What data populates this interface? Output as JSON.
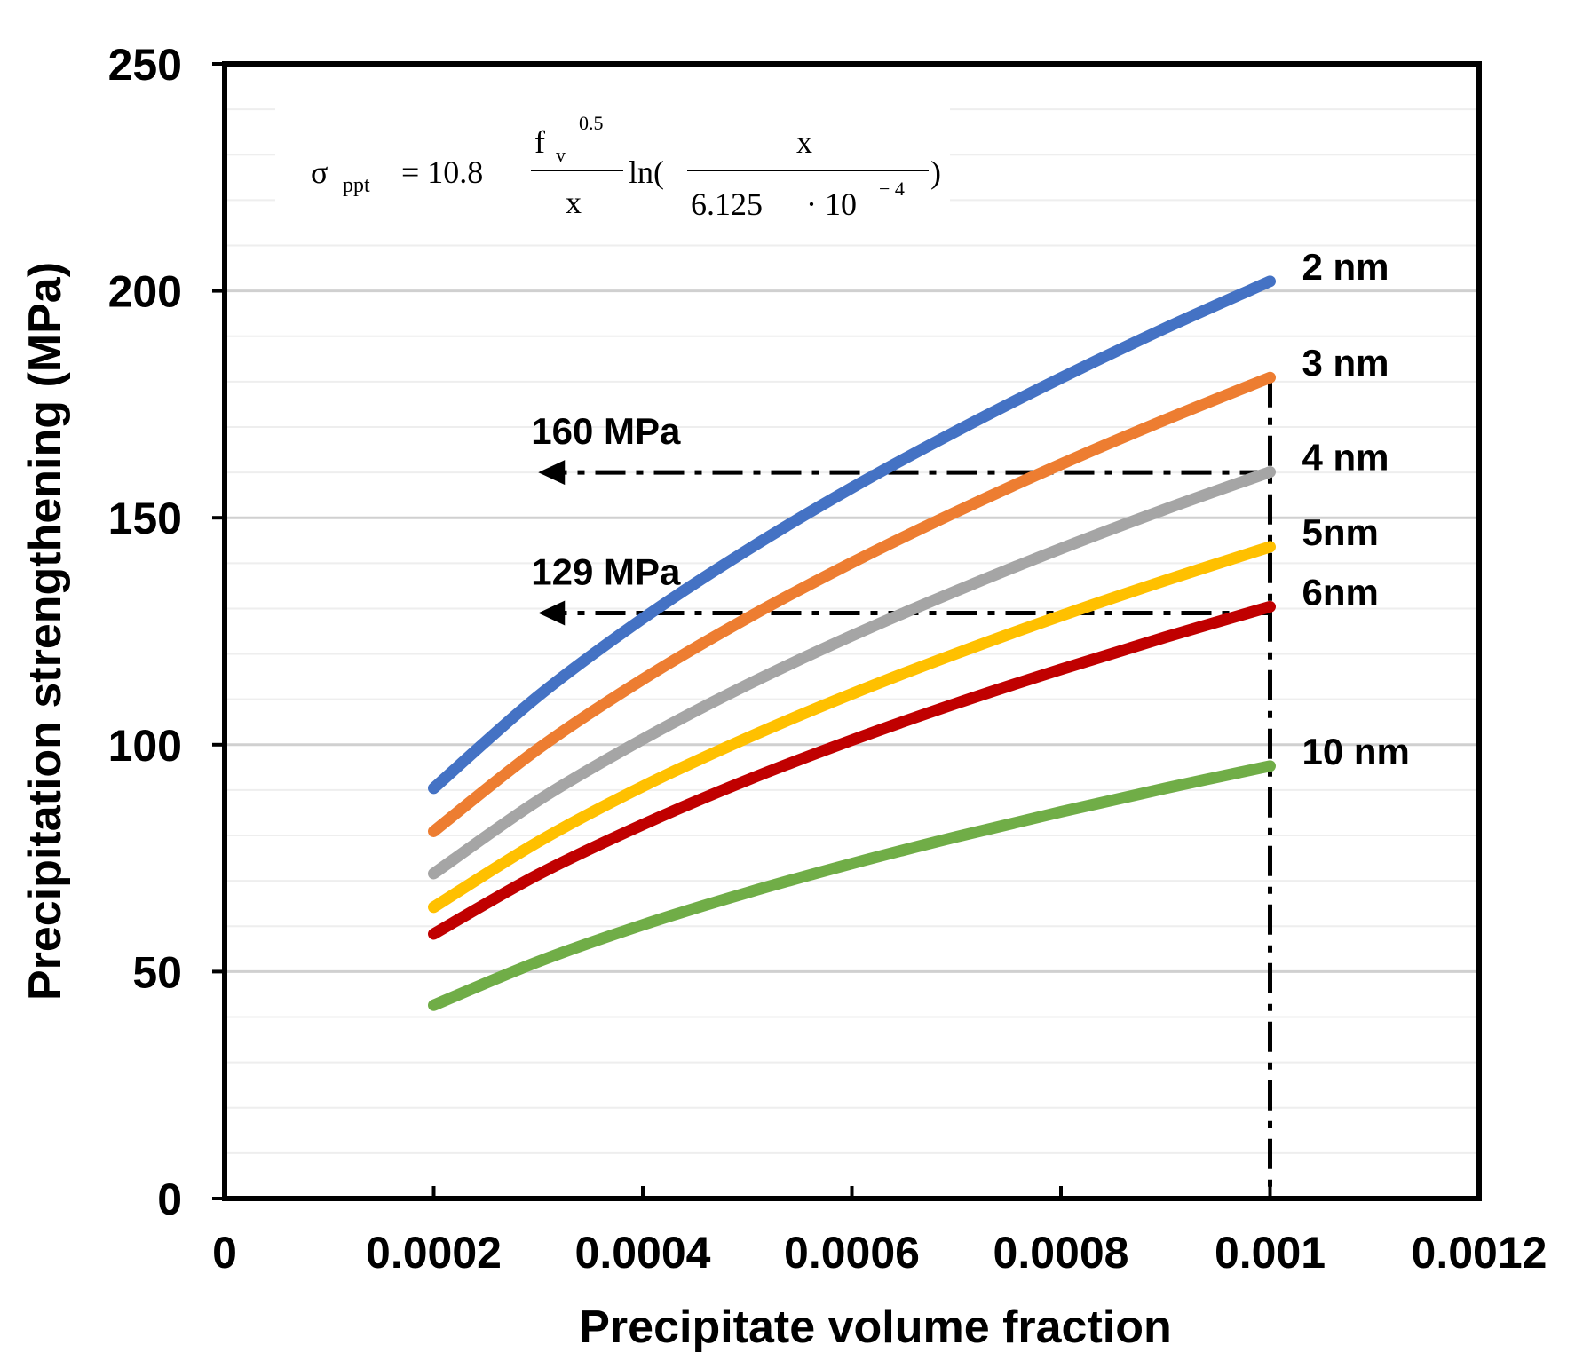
{
  "chart_data": {
    "type": "line",
    "title": "",
    "xlabel": "Precipitate volume fraction",
    "ylabel": "Precipitation strengthening (MPa)",
    "xlim": [
      0,
      0.0012
    ],
    "ylim": [
      0,
      250
    ],
    "x_ticks": [
      0,
      0.0002,
      0.0004,
      0.0006,
      0.0008,
      0.001,
      0.0012
    ],
    "x_tick_labels": [
      "0",
      "0.0002",
      "0.0004",
      "0.0006",
      "0.0008",
      "0.001",
      "0.0012"
    ],
    "y_ticks": [
      0,
      50,
      100,
      150,
      200,
      250
    ],
    "y_tick_labels": [
      "0",
      "50",
      "100",
      "150",
      "200",
      "250"
    ],
    "minor_grid_step": 10,
    "grid": true,
    "x": [
      0.0002,
      0.0003,
      0.0004,
      0.0005,
      0.0006,
      0.0007,
      0.0008,
      0.0009,
      0.001
    ],
    "series": [
      {
        "name": "2 nm",
        "color": "#4472C4",
        "values": [
          90.4,
          110.7,
          127.8,
          142.9,
          156.6,
          169.1,
          180.8,
          191.8,
          202.1
        ]
      },
      {
        "name": "3 nm",
        "color": "#ED7D31",
        "values": [
          80.9,
          99.1,
          114.4,
          127.9,
          140.1,
          151.3,
          161.8,
          171.6,
          180.9
        ]
      },
      {
        "name": "4 nm",
        "color": "#A5A5A5",
        "values": [
          71.6,
          87.7,
          101.2,
          113.2,
          124.0,
          133.9,
          143.2,
          151.9,
          160.1
        ]
      },
      {
        "name": "5nm",
        "color": "#FFC000",
        "values": [
          64.2,
          78.6,
          90.8,
          101.5,
          111.2,
          120.1,
          128.4,
          136.2,
          143.6
        ]
      },
      {
        "name": "6nm",
        "color": "#C00000",
        "values": [
          58.3,
          71.4,
          82.4,
          92.2,
          101.0,
          109.1,
          116.6,
          123.7,
          130.4
        ]
      },
      {
        "name": "10 nm",
        "color": "#70AD47",
        "values": [
          42.6,
          52.2,
          60.3,
          67.4,
          73.8,
          79.7,
          85.2,
          90.4,
          95.3
        ]
      }
    ],
    "annotations": [
      {
        "text": "160 MPa",
        "y": 160,
        "x_from": 0.001,
        "x_to": 0.0003
      },
      {
        "text": "129 MPa",
        "y": 129,
        "x_from": 0.001,
        "x_to": 0.0003
      }
    ],
    "vertical_marker": {
      "x": 0.001,
      "y_from": 0,
      "y_to": 181
    },
    "equation": {
      "lhs_symbol": "σ",
      "lhs_subscript": "ppt",
      "equals_coef": "= 10.8",
      "frac1_num_base": "f",
      "frac1_num_sub": "v",
      "frac1_num_sup": "0.5",
      "frac1_den": "x",
      "ln_open": "ln(",
      "frac2_num": "x",
      "frac2_den_a": "6.125",
      "frac2_den_b": "· 10",
      "frac2_den_sup": "− 4",
      "close": ")"
    }
  }
}
